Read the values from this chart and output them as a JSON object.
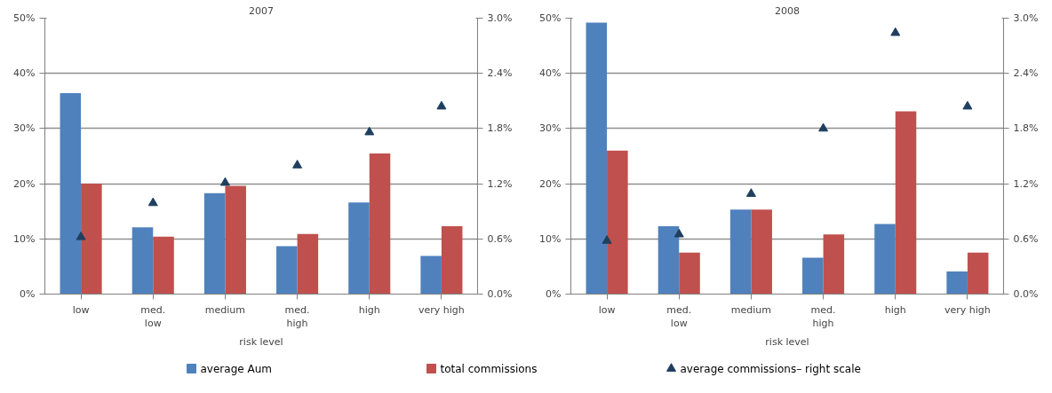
{
  "chart_data": [
    {
      "type": "bar",
      "title": "2007",
      "xlabel": "risk level",
      "categories": [
        "low",
        "med.\nlow",
        "medium",
        "med.\nhigh",
        "high",
        "very high"
      ],
      "series": [
        {
          "name": "average Aum",
          "color": "#4f81bd",
          "values": [
            36.4,
            12.1,
            18.3,
            8.7,
            16.6,
            6.9
          ]
        },
        {
          "name": "total commissions",
          "color": "#c0504d",
          "values": [
            20.0,
            10.4,
            19.6,
            10.9,
            25.5,
            12.3
          ]
        },
        {
          "name": "average commissions–  right scale",
          "type": "scatter",
          "axis": "y2",
          "color": "#1f3f5f",
          "values": [
            0.62,
            0.99,
            1.21,
            1.4,
            1.76,
            2.04
          ]
        }
      ],
      "ylim": [
        0,
        50
      ],
      "yticks": [
        {
          "value": 0,
          "label": "0%"
        },
        {
          "value": 10,
          "label": "10%"
        },
        {
          "value": 20,
          "label": "20%"
        },
        {
          "value": 30,
          "label": "30%"
        },
        {
          "value": 40,
          "label": "40%"
        },
        {
          "value": 50,
          "label": "50%"
        }
      ],
      "y2lim": [
        0,
        3.0
      ],
      "y2ticks": [
        {
          "value": 0,
          "label": "0.0%"
        },
        {
          "value": 0.6,
          "label": "0.6%"
        },
        {
          "value": 1.2,
          "label": "1.2%"
        },
        {
          "value": 1.8,
          "label": "1.8%"
        },
        {
          "value": 2.4,
          "label": "2.4%"
        },
        {
          "value": 3.0,
          "label": "3.0%"
        }
      ],
      "grid": "y",
      "marker": "triangle",
      "legend": "bottom"
    },
    {
      "type": "bar",
      "title": "2008",
      "xlabel": "risk level",
      "categories": [
        "low",
        "med.\nlow",
        "medium",
        "med.\nhigh",
        "high",
        "very high"
      ],
      "series": [
        {
          "color": "#4f81bd",
          "values": [
            49.2,
            12.3,
            15.3,
            6.6,
            12.7,
            4.1
          ]
        },
        {
          "color": "#c0504d",
          "values": [
            26.0,
            7.5,
            15.3,
            10.8,
            33.1,
            7.5
          ]
        },
        {
          "type": "scatter",
          "axis": "y2",
          "color": "#1f3f5f",
          "values": [
            0.58,
            0.65,
            1.09,
            1.8,
            2.84,
            2.04
          ]
        }
      ],
      "ylim": [
        0,
        50
      ],
      "yticks": [
        {
          "value": 0,
          "label": "0%"
        },
        {
          "value": 10,
          "label": "10%"
        },
        {
          "value": 20,
          "label": "20%"
        },
        {
          "value": 30,
          "label": "30%"
        },
        {
          "value": 40,
          "label": "40%"
        },
        {
          "value": 50,
          "label": "50%"
        }
      ],
      "y2lim": [
        0,
        3.0
      ],
      "y2ticks": [
        {
          "value": 0,
          "label": "0.0%"
        },
        {
          "value": 0.6,
          "label": "0.6%"
        },
        {
          "value": 1.2,
          "label": "1.2%"
        },
        {
          "value": 1.8,
          "label": "1.8%"
        },
        {
          "value": 2.4,
          "label": "2.4%"
        },
        {
          "value": 3.0,
          "label": "3.0%"
        }
      ],
      "grid": "y",
      "marker": "triangle"
    }
  ]
}
